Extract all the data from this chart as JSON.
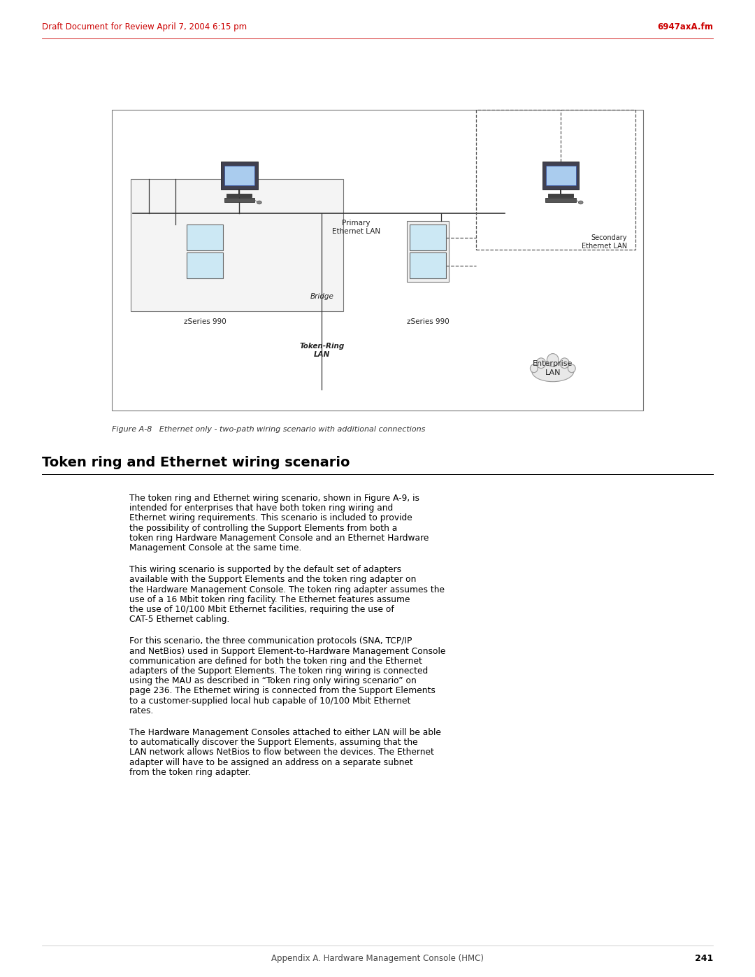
{
  "page_width": 10.8,
  "page_height": 13.97,
  "bg_color": "#ffffff",
  "header_left": "Draft Document for Review April 7, 2004 6:15 pm",
  "header_right": "6947axA.fm",
  "header_color": "#cc0000",
  "header_fontsize": 8.5,
  "figure_caption": "Figure A-8   Ethernet only - two-path wiring scenario with additional connections",
  "section_title": "Token ring and Ethernet wiring scenario",
  "para1": "The token ring and Ethernet wiring scenario, shown in Figure A-9, is intended for enterprises that have both token ring wiring and Ethernet wiring requirements. This scenario is included to provide the possibility of controlling the Support Elements from both a token ring Hardware Management Console and an Ethernet Hardware Management Console at the same time.",
  "para2": "This wiring scenario is supported by the default set of adapters available with the Support Elements and the token ring adapter on the Hardware Management Console. The token ring adapter assumes the use of a 16 Mbit token ring facility. The Ethernet features assume the use of 10/100 Mbit Ethernet facilities, requiring the use of CAT-5 Ethernet cabling.",
  "para3": "For this scenario, the three communication protocols (SNA, TCP/IP and NetBios) used in Support Element-to-Hardware Management Console communication are defined for both the token ring and the Ethernet adapters of the Support Elements. The token ring wiring is connected using the MAU as described in “Token ring only wiring scenario” on page 236. The Ethernet wiring is connected from the Support Elements to a customer-supplied local hub capable of 10/100 Mbit Ethernet rates.",
  "para4": "The Hardware Management Consoles attached to either LAN will be able to automatically discover the Support Elements, assuming that the LAN network allows NetBios to flow between the devices. The Ethernet adapter will have to be assigned an address on a separate subnet from the token ring adapter.",
  "footer_text": "Appendix A. Hardware Management Console (HMC)",
  "footer_page": "241",
  "body_fontsize": 8.8,
  "title_fontsize": 14,
  "caption_fontsize": 8,
  "se_box_color": "#cce8f4",
  "se_box_border": "#666666",
  "diagram_bg": "#ffffff",
  "diagram_border": "#888888"
}
